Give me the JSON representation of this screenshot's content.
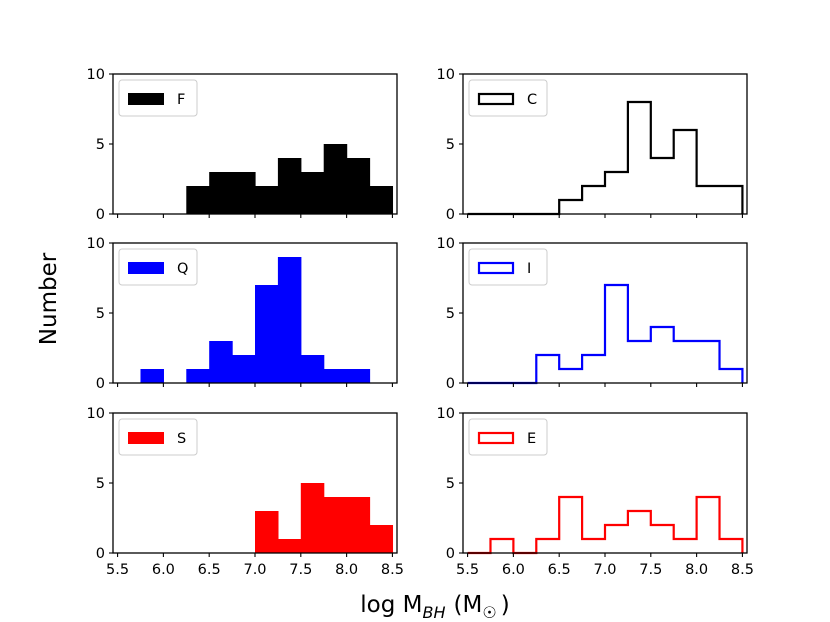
{
  "figure": {
    "ylabel": "Number",
    "xlabel_main": "log M",
    "xlabel_sub": "BH",
    "xlabel_units": "(M",
    "xlabel_sun": "☉",
    "xlabel_close": ")"
  },
  "chart_data": [
    {
      "type": "bar",
      "style": "filled",
      "legend": "F",
      "color": "#000000",
      "bin_edges": [
        5.5,
        5.75,
        6.0,
        6.25,
        6.5,
        6.75,
        7.0,
        7.25,
        7.5,
        7.75,
        8.0,
        8.25,
        8.5
      ],
      "counts": [
        0,
        0,
        0,
        2,
        3,
        3,
        2,
        4,
        3,
        5,
        4,
        2
      ],
      "xlim": [
        5.45,
        8.55
      ],
      "ylim": [
        0,
        10
      ],
      "yticks": [
        "0",
        "5",
        "10"
      ],
      "xticks": [],
      "legend_position": "top-left"
    },
    {
      "type": "bar",
      "style": "step",
      "legend": "C",
      "color": "#000000",
      "bin_edges": [
        5.5,
        5.75,
        6.0,
        6.25,
        6.5,
        6.75,
        7.0,
        7.25,
        7.5,
        7.75,
        8.0,
        8.25,
        8.5
      ],
      "counts": [
        0,
        0,
        0,
        0,
        1,
        2,
        3,
        8,
        4,
        6,
        2,
        2
      ],
      "xlim": [
        5.45,
        8.55
      ],
      "ylim": [
        0,
        10
      ],
      "yticks": [
        "0",
        "5",
        "10"
      ],
      "xticks": [],
      "legend_position": "top-left"
    },
    {
      "type": "bar",
      "style": "filled",
      "legend": "Q",
      "color": "#0000ff",
      "bin_edges": [
        5.5,
        5.75,
        6.0,
        6.25,
        6.5,
        6.75,
        7.0,
        7.25,
        7.5,
        7.75,
        8.0,
        8.25,
        8.5
      ],
      "counts": [
        0,
        1,
        0,
        1,
        3,
        2,
        7,
        9,
        2,
        1,
        1,
        0
      ],
      "xlim": [
        5.45,
        8.55
      ],
      "ylim": [
        0,
        10
      ],
      "yticks": [
        "0",
        "5",
        "10"
      ],
      "xticks": [],
      "legend_position": "top-left"
    },
    {
      "type": "bar",
      "style": "step",
      "legend": "I",
      "color": "#0000ff",
      "bin_edges": [
        5.5,
        5.75,
        6.0,
        6.25,
        6.5,
        6.75,
        7.0,
        7.25,
        7.5,
        7.75,
        8.0,
        8.25,
        8.5
      ],
      "counts": [
        0,
        0,
        0,
        2,
        1,
        2,
        7,
        3,
        4,
        3,
        3,
        1
      ],
      "xlim": [
        5.45,
        8.55
      ],
      "ylim": [
        0,
        10
      ],
      "yticks": [
        "0",
        "5",
        "10"
      ],
      "xticks": [],
      "legend_position": "top-left"
    },
    {
      "type": "bar",
      "style": "filled",
      "legend": "S",
      "color": "#ff0000",
      "bin_edges": [
        5.5,
        5.75,
        6.0,
        6.25,
        6.5,
        6.75,
        7.0,
        7.25,
        7.5,
        7.75,
        8.0,
        8.25,
        8.5
      ],
      "counts": [
        0,
        0,
        0,
        0,
        0,
        0,
        3,
        1,
        5,
        4,
        4,
        2
      ],
      "xlim": [
        5.45,
        8.55
      ],
      "ylim": [
        0,
        10
      ],
      "yticks": [
        "0",
        "5",
        "10"
      ],
      "xticks": [
        "5.5",
        "6.0",
        "6.5",
        "7.0",
        "7.5",
        "8.0",
        "8.5"
      ],
      "legend_position": "top-left"
    },
    {
      "type": "bar",
      "style": "step",
      "legend": "E",
      "color": "#ff0000",
      "bin_edges": [
        5.5,
        5.75,
        6.0,
        6.25,
        6.5,
        6.75,
        7.0,
        7.25,
        7.5,
        7.75,
        8.0,
        8.25,
        8.5
      ],
      "counts": [
        0,
        1,
        0,
        1,
        4,
        1,
        2,
        3,
        2,
        1,
        4,
        1
      ],
      "xlim": [
        5.45,
        8.55
      ],
      "ylim": [
        0,
        10
      ],
      "yticks": [
        "0",
        "5",
        "10"
      ],
      "xticks": [
        "5.5",
        "6.0",
        "6.5",
        "7.0",
        "7.5",
        "8.0",
        "8.5"
      ],
      "legend_position": "top-left"
    }
  ]
}
